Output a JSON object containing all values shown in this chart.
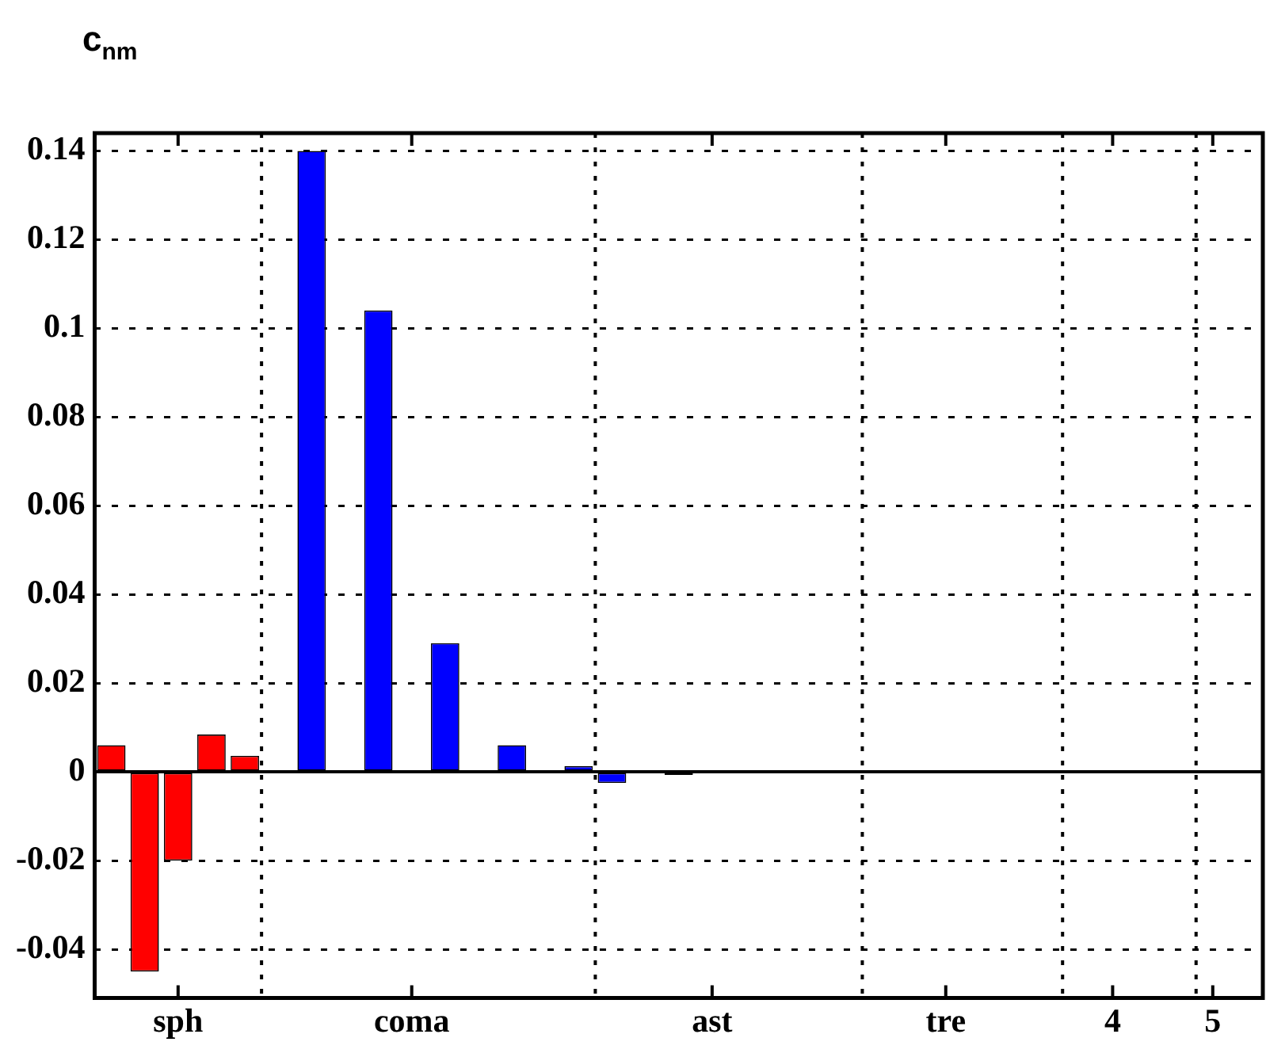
{
  "chart_data": {
    "type": "bar",
    "ylabel": "c$_{nm}$",
    "categories": [
      null,
      null,
      "sph",
      null,
      null,
      null,
      null,
      null,
      null,
      "coma",
      null,
      null,
      null,
      null,
      null,
      null,
      null,
      null,
      "ast",
      null,
      null,
      null,
      null,
      null,
      null,
      "tre",
      null,
      null,
      null,
      null,
      "4",
      null,
      null,
      "5",
      null
    ],
    "values": [
      0.006,
      -0.045,
      -0.02,
      0.0084,
      0.0036,
      0,
      0.14,
      0,
      0.104,
      0,
      0.029,
      0,
      0.006,
      0,
      0.0013,
      -0.0025,
      0,
      -0.0007,
      0,
      0,
      0,
      0,
      0,
      0,
      0,
      0,
      0,
      0,
      0,
      0,
      0,
      0,
      0,
      0,
      0
    ],
    "colors": [
      "#ff0000",
      "#ff0000",
      "#ff0000",
      "#ff0000",
      "#ff0000",
      "#0000ff",
      "#0000ff",
      "#0000ff",
      "#0000ff",
      "#0000ff",
      "#0000ff",
      "#0000ff",
      "#0000ff",
      "#0000ff",
      "#0000ff",
      "#0000ff",
      "#0000ff",
      "#000000",
      "#0000ff",
      "#0000ff",
      "#0000ff",
      "#0000ff",
      "#0000ff",
      "#0000ff",
      "#0000ff",
      "#0000ff",
      "#0000ff",
      "#0000ff",
      "#0000ff",
      "#0000ff",
      "#0000ff",
      "#0000ff",
      "#0000ff",
      "#0000ff",
      "#0000ff"
    ],
    "ylim": [
      -0.051,
      0.144
    ],
    "yticks": [
      -0.04,
      -0.02,
      0,
      0.02,
      0.04,
      0.06,
      0.08,
      0.1,
      0.12,
      0.14
    ],
    "grid": "y",
    "ref_lines": [
      {
        "axis": "y",
        "value": 0,
        "line_style": "solid"
      }
    ]
  }
}
